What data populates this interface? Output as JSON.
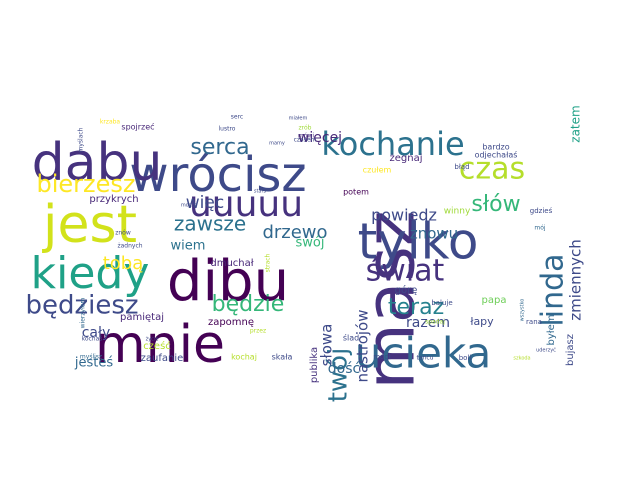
{
  "word_cloud": {
    "palette": [
      "#440154",
      "#46327e",
      "#365c8d",
      "#277f8e",
      "#1fa187",
      "#4ac16d",
      "#a0da39",
      "#fde725"
    ],
    "words": [
      {
        "text": "wrócisz",
        "color": "#3e4a89"
      },
      {
        "text": "masz",
        "color": "#46327e"
      },
      {
        "text": "mnie",
        "color": "#440154"
      },
      {
        "text": "dibu",
        "color": "#440154"
      },
      {
        "text": "jest",
        "color": "#d2e21b"
      },
      {
        "text": "dabu",
        "color": "#46327e"
      },
      {
        "text": "tylko",
        "color": "#3e4a89"
      },
      {
        "text": "kiedy",
        "color": "#1fa187"
      },
      {
        "text": "ucieka",
        "color": "#31688e"
      },
      {
        "text": "kochanie",
        "color": "#2c728e"
      },
      {
        "text": "uuuuu",
        "color": "#46327e"
      },
      {
        "text": "czas",
        "color": "#b5de2b"
      },
      {
        "text": "bierzesz",
        "color": "#fde725"
      },
      {
        "text": "będziesz",
        "color": "#3e4a89"
      },
      {
        "text": "świat",
        "color": "#46327e"
      },
      {
        "text": "linda",
        "color": "#31688e"
      },
      {
        "text": "twój",
        "color": "#2c728e"
      },
      {
        "text": "serca",
        "color": "#31688e"
      },
      {
        "text": "będzie",
        "color": "#35b779"
      },
      {
        "text": "zawsze",
        "color": "#2c728e"
      },
      {
        "text": "teraz",
        "color": "#26828e"
      },
      {
        "text": "słów",
        "color": "#35b779"
      },
      {
        "text": "powiedz",
        "color": "#3e4a89"
      },
      {
        "text": "drzewo",
        "color": "#31688e"
      },
      {
        "text": "znowu",
        "color": "#31688e"
      },
      {
        "text": "więcej",
        "color": "#482878"
      },
      {
        "text": "tobą",
        "color": "#fde725"
      },
      {
        "text": "więc",
        "color": "#3e4a89"
      },
      {
        "text": "zmiennych",
        "color": "#3e4a89"
      },
      {
        "text": "nastrojów",
        "color": "#3e4a89"
      },
      {
        "text": "cały",
        "color": "#3e4a89"
      },
      {
        "text": "słowa",
        "color": "#3e4a89"
      },
      {
        "text": "razem",
        "color": "#3e4a89"
      },
      {
        "text": "wiem",
        "color": "#2c728e"
      },
      {
        "text": "swój",
        "color": "#35b779"
      },
      {
        "text": "dość",
        "color": "#31688e"
      },
      {
        "text": "jesteś",
        "color": "#31688e"
      },
      {
        "text": "przykrych",
        "color": "#482878"
      },
      {
        "text": "żegnaj",
        "color": "#482878"
      },
      {
        "text": "dmuchał",
        "color": "#482878"
      },
      {
        "text": "łapy",
        "color": "#3e4a89"
      },
      {
        "text": "górę",
        "color": "#3e4a89"
      },
      {
        "text": "pamiętaj",
        "color": "#482878"
      },
      {
        "text": "publika",
        "color": "#46327e"
      },
      {
        "text": "zapomnę",
        "color": "#440154"
      },
      {
        "text": "zaufanie",
        "color": "#3e4a89"
      },
      {
        "text": "cześć",
        "color": "#b5de2b"
      },
      {
        "text": "byłem",
        "color": "#31688e"
      },
      {
        "text": "bujasz",
        "color": "#3e4a89"
      },
      {
        "text": "zatem",
        "color": "#1fa187"
      },
      {
        "text": "papa",
        "color": "#6ece58"
      },
      {
        "text": "potem",
        "color": "#440154"
      },
      {
        "text": "spojrzeć",
        "color": "#482878"
      },
      {
        "text": "winny",
        "color": "#a0da39"
      },
      {
        "text": "ślad",
        "color": "#3e4a89"
      },
      {
        "text": "czułem",
        "color": "#fde725"
      },
      {
        "text": "bardzo",
        "color": "#3e4a89"
      },
      {
        "text": "odjechałaś",
        "color": "#3e4a89"
      },
      {
        "text": "kochaś",
        "color": "#3e4a89"
      },
      {
        "text": "kochaj",
        "color": "#b5de2b"
      },
      {
        "text": "skała",
        "color": "#3e4a89"
      },
      {
        "text": "mógł",
        "color": "#3e4a89"
      },
      {
        "text": "boli",
        "color": "#3e4a89"
      },
      {
        "text": "mówi",
        "color": "#46327e"
      },
      {
        "text": "rana",
        "color": "#3e4a89"
      },
      {
        "text": "myślisz",
        "color": "#31688e"
      },
      {
        "text": "krzaba",
        "color": "#fde725"
      },
      {
        "text": "myślach",
        "color": "#3e4a89"
      },
      {
        "text": "lustro",
        "color": "#3e4a89"
      },
      {
        "text": "serc",
        "color": "#3e4a89"
      },
      {
        "text": "zrób",
        "color": "#a0da39"
      },
      {
        "text": "wszystko",
        "color": "#31688e"
      },
      {
        "text": "żadnych",
        "color": "#3e4a89"
      },
      {
        "text": "znów",
        "color": "#3e4a89"
      },
      {
        "text": "błąd",
        "color": "#3e4a89"
      },
      {
        "text": "gdzieś",
        "color": "#3e4a89"
      },
      {
        "text": "baluje",
        "color": "#3e4a89"
      },
      {
        "text": "tańcu",
        "color": "#3e4a89"
      },
      {
        "text": "miałem",
        "color": "#3e4a89"
      },
      {
        "text": "wierzyłem",
        "color": "#31688e"
      },
      {
        "text": "czasem",
        "color": "#3e4a89"
      },
      {
        "text": "strach",
        "color": "#b5de2b"
      },
      {
        "text": "moczo",
        "color": "#3e4a89"
      },
      {
        "text": "przez",
        "color": "#b5de2b"
      },
      {
        "text": "mamy",
        "color": "#3e4a89"
      },
      {
        "text": "stars",
        "color": "#3e4a89"
      },
      {
        "text": "mój",
        "color": "#31688e"
      },
      {
        "text": "życie",
        "color": "#3e4a89"
      },
      {
        "text": "spadaj",
        "color": "#a0da39"
      },
      {
        "text": "uderzyć",
        "color": "#3e4a89"
      },
      {
        "text": "szkoda",
        "color": "#b5de2b"
      }
    ]
  }
}
